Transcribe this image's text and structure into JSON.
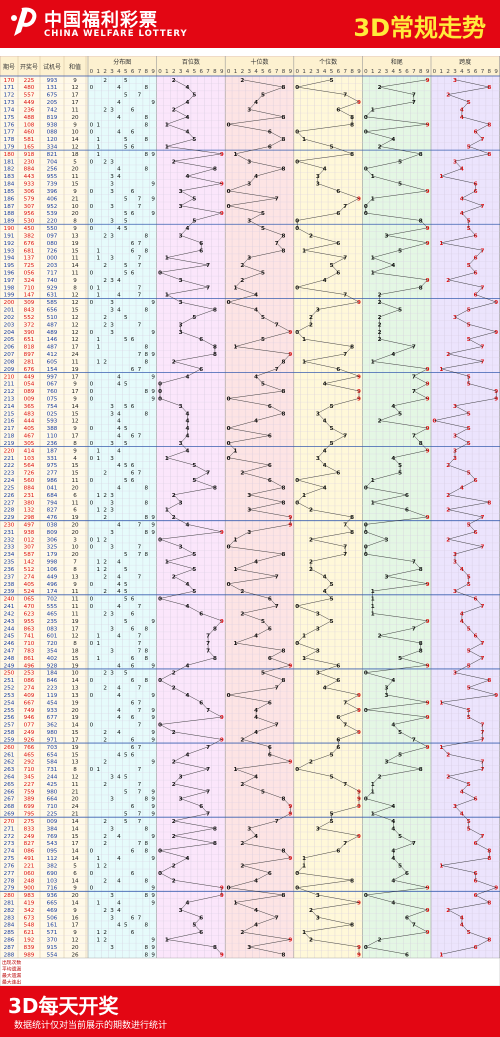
{
  "header": {
    "brand_cn": "中国福利彩票",
    "brand_en": "CHINA WELFARE LOTTERY",
    "title": "3D常规走势"
  },
  "footer": {
    "title": "3D每天开奖",
    "note": "数据统计仅对当前展示的期数进行统计"
  },
  "table": {
    "col_headers": [
      "期号",
      "开奖号",
      "试机号",
      "和值"
    ],
    "section_titles": [
      "分布图",
      "百位数",
      "十位数",
      "个位数",
      "和尾",
      "跨度"
    ],
    "digit_labels": [
      "0",
      "1",
      "2",
      "3",
      "4",
      "5",
      "6",
      "7",
      "8",
      "9"
    ],
    "stats_labels": [
      "出现次数",
      "平均遗漏",
      "最大遗漏",
      "最大连出"
    ]
  },
  "chart_data": {
    "type": "table",
    "title": "3D常规走势",
    "period_range": [
      170,
      289
    ],
    "rows": [
      {
        "p": "170",
        "draw": "225",
        "trial": "993",
        "sum": 9
      },
      {
        "p": "171",
        "draw": "480",
        "trial": "131",
        "sum": 12
      },
      {
        "p": "172",
        "draw": "557",
        "trial": "675",
        "sum": 17
      },
      {
        "p": "173",
        "draw": "449",
        "trial": "205",
        "sum": 17
      },
      {
        "p": "174",
        "draw": "236",
        "trial": "742",
        "sum": 11
      },
      {
        "p": "175",
        "draw": "488",
        "trial": "819",
        "sum": 20
      },
      {
        "p": "176",
        "draw": "108",
        "trial": "938",
        "sum": 9
      },
      {
        "p": "177",
        "draw": "460",
        "trial": "088",
        "sum": 10
      },
      {
        "p": "178",
        "draw": "581",
        "trial": "120",
        "sum": 14
      },
      {
        "p": "179",
        "draw": "165",
        "trial": "334",
        "sum": 12
      },
      {
        "p": "180",
        "draw": "918",
        "trial": "821",
        "sum": 18
      },
      {
        "p": "181",
        "draw": "230",
        "trial": "704",
        "sum": 5
      },
      {
        "p": "182",
        "draw": "884",
        "trial": "256",
        "sum": 20
      },
      {
        "p": "183",
        "draw": "443",
        "trial": "955",
        "sum": 11
      },
      {
        "p": "184",
        "draw": "933",
        "trial": "739",
        "sum": 15
      },
      {
        "p": "185",
        "draw": "306",
        "trial": "396",
        "sum": 9
      },
      {
        "p": "186",
        "draw": "579",
        "trial": "406",
        "sum": 21
      },
      {
        "p": "187",
        "draw": "307",
        "trial": "952",
        "sum": 10
      },
      {
        "p": "188",
        "draw": "956",
        "trial": "539",
        "sum": 20
      },
      {
        "p": "189",
        "draw": "530",
        "trial": "220",
        "sum": 8
      },
      {
        "p": "190",
        "draw": "450",
        "trial": "550",
        "sum": 9
      },
      {
        "p": "191",
        "draw": "382",
        "trial": "097",
        "sum": 13
      },
      {
        "p": "192",
        "draw": "676",
        "trial": "080",
        "sum": 19
      },
      {
        "p": "193",
        "draw": "681",
        "trial": "726",
        "sum": 15
      },
      {
        "p": "194",
        "draw": "137",
        "trial": "000",
        "sum": 11
      },
      {
        "p": "195",
        "draw": "725",
        "trial": "203",
        "sum": 14
      },
      {
        "p": "196",
        "draw": "056",
        "trial": "717",
        "sum": 11
      },
      {
        "p": "197",
        "draw": "324",
        "trial": "740",
        "sum": 9
      },
      {
        "p": "198",
        "draw": "710",
        "trial": "929",
        "sum": 8
      },
      {
        "p": "199",
        "draw": "147",
        "trial": "631",
        "sum": 12
      },
      {
        "p": "200",
        "draw": "309",
        "trial": "585",
        "sum": 12
      },
      {
        "p": "201",
        "draw": "843",
        "trial": "656",
        "sum": 15
      },
      {
        "p": "202",
        "draw": "552",
        "trial": "510",
        "sum": 12
      },
      {
        "p": "203",
        "draw": "372",
        "trial": "487",
        "sum": 12
      },
      {
        "p": "204",
        "draw": "390",
        "trial": "489",
        "sum": 12
      },
      {
        "p": "205",
        "draw": "651",
        "trial": "146",
        "sum": 12
      },
      {
        "p": "206",
        "draw": "818",
        "trial": "487",
        "sum": 17
      },
      {
        "p": "207",
        "draw": "897",
        "trial": "412",
        "sum": 24
      },
      {
        "p": "208",
        "draw": "281",
        "trial": "605",
        "sum": 11
      },
      {
        "p": "209",
        "draw": "676",
        "trial": "154",
        "sum": 19
      },
      {
        "p": "210",
        "draw": "449",
        "trial": "997",
        "sum": 17
      },
      {
        "p": "211",
        "draw": "054",
        "trial": "067",
        "sum": 9
      },
      {
        "p": "212",
        "draw": "089",
        "trial": "760",
        "sum": 17
      },
      {
        "p": "213",
        "draw": "009",
        "trial": "075",
        "sum": 9
      },
      {
        "p": "214",
        "draw": "365",
        "trial": "754",
        "sum": 14
      },
      {
        "p": "215",
        "draw": "483",
        "trial": "025",
        "sum": 15
      },
      {
        "p": "216",
        "draw": "444",
        "trial": "593",
        "sum": 12
      },
      {
        "p": "217",
        "draw": "405",
        "trial": "388",
        "sum": 9
      },
      {
        "p": "218",
        "draw": "467",
        "trial": "110",
        "sum": 17
      },
      {
        "p": "219",
        "draw": "305",
        "trial": "236",
        "sum": 8
      },
      {
        "p": "220",
        "draw": "414",
        "trial": "187",
        "sum": 9
      },
      {
        "p": "221",
        "draw": "103",
        "trial": "331",
        "sum": 4
      },
      {
        "p": "222",
        "draw": "564",
        "trial": "975",
        "sum": 15
      },
      {
        "p": "223",
        "draw": "726",
        "trial": "277",
        "sum": 15
      },
      {
        "p": "224",
        "draw": "560",
        "trial": "986",
        "sum": 11
      },
      {
        "p": "225",
        "draw": "884",
        "trial": "041",
        "sum": 20
      },
      {
        "p": "226",
        "draw": "231",
        "trial": "684",
        "sum": 6
      },
      {
        "p": "227",
        "draw": "380",
        "trial": "794",
        "sum": 11
      },
      {
        "p": "228",
        "draw": "132",
        "trial": "827",
        "sum": 6
      },
      {
        "p": "229",
        "draw": "298",
        "trial": "476",
        "sum": 19
      },
      {
        "p": "230",
        "draw": "497",
        "trial": "038",
        "sum": 20
      },
      {
        "p": "231",
        "draw": "938",
        "trial": "809",
        "sum": 20
      },
      {
        "p": "232",
        "draw": "012",
        "trial": "306",
        "sum": 3
      },
      {
        "p": "233",
        "draw": "307",
        "trial": "325",
        "sum": 10
      },
      {
        "p": "234",
        "draw": "587",
        "trial": "179",
        "sum": 20
      },
      {
        "p": "235",
        "draw": "142",
        "trial": "998",
        "sum": 7
      },
      {
        "p": "236",
        "draw": "512",
        "trial": "106",
        "sum": 8
      },
      {
        "p": "237",
        "draw": "274",
        "trial": "449",
        "sum": 13
      },
      {
        "p": "238",
        "draw": "405",
        "trial": "496",
        "sum": 9
      },
      {
        "p": "239",
        "draw": "524",
        "trial": "174",
        "sum": 11
      },
      {
        "p": "240",
        "draw": "065",
        "trial": "702",
        "sum": 11
      },
      {
        "p": "241",
        "draw": "470",
        "trial": "555",
        "sum": 11
      },
      {
        "p": "242",
        "draw": "623",
        "trial": "465",
        "sum": 11
      },
      {
        "p": "243",
        "draw": "955",
        "trial": "235",
        "sum": 19
      },
      {
        "p": "244",
        "draw": "863",
        "trial": "083",
        "sum": 17
      },
      {
        "p": "245",
        "draw": "741",
        "trial": "601",
        "sum": 12
      },
      {
        "p": "246",
        "draw": "710",
        "trial": "720",
        "sum": 8
      },
      {
        "p": "247",
        "draw": "783",
        "trial": "354",
        "sum": 18
      },
      {
        "p": "248",
        "draw": "861",
        "trial": "402",
        "sum": 15
      },
      {
        "p": "249",
        "draw": "496",
        "trial": "928",
        "sum": 19
      },
      {
        "p": "250",
        "draw": "253",
        "trial": "184",
        "sum": 10
      },
      {
        "p": "251",
        "draw": "086",
        "trial": "846",
        "sum": 14
      },
      {
        "p": "252",
        "draw": "274",
        "trial": "223",
        "sum": 13
      },
      {
        "p": "253",
        "draw": "409",
        "trial": "119",
        "sum": 13
      },
      {
        "p": "254",
        "draw": "667",
        "trial": "454",
        "sum": 19
      },
      {
        "p": "255",
        "draw": "749",
        "trial": "933",
        "sum": 20
      },
      {
        "p": "256",
        "draw": "946",
        "trial": "677",
        "sum": 19
      },
      {
        "p": "257",
        "draw": "077",
        "trial": "362",
        "sum": 14
      },
      {
        "p": "258",
        "draw": "249",
        "trial": "980",
        "sum": 15
      },
      {
        "p": "259",
        "draw": "926",
        "trial": "971",
        "sum": 17
      },
      {
        "p": "260",
        "draw": "766",
        "trial": "703",
        "sum": 19
      },
      {
        "p": "261",
        "draw": "465",
        "trial": "654",
        "sum": 15
      },
      {
        "p": "262",
        "draw": "292",
        "trial": "584",
        "sum": 13
      },
      {
        "p": "263",
        "draw": "710",
        "trial": "731",
        "sum": 8
      },
      {
        "p": "264",
        "draw": "345",
        "trial": "244",
        "sum": 12
      },
      {
        "p": "265",
        "draw": "227",
        "trial": "425",
        "sum": 11
      },
      {
        "p": "266",
        "draw": "759",
        "trial": "980",
        "sum": 21
      },
      {
        "p": "267",
        "draw": "389",
        "trial": "664",
        "sum": 20
      },
      {
        "p": "268",
        "draw": "699",
        "trial": "710",
        "sum": 24
      },
      {
        "p": "269",
        "draw": "795",
        "trial": "225",
        "sum": 21
      },
      {
        "p": "270",
        "draw": "275",
        "trial": "009",
        "sum": 14
      },
      {
        "p": "271",
        "draw": "833",
        "trial": "384",
        "sum": 14
      },
      {
        "p": "272",
        "draw": "249",
        "trial": "769",
        "sum": 15
      },
      {
        "p": "273",
        "draw": "827",
        "trial": "543",
        "sum": 17
      },
      {
        "p": "274",
        "draw": "086",
        "trial": "095",
        "sum": 14
      },
      {
        "p": "275",
        "draw": "491",
        "trial": "112",
        "sum": 14
      },
      {
        "p": "276",
        "draw": "221",
        "trial": "382",
        "sum": 5
      },
      {
        "p": "277",
        "draw": "060",
        "trial": "690",
        "sum": 6
      },
      {
        "p": "278",
        "draw": "248",
        "trial": "103",
        "sum": 14
      },
      {
        "p": "279",
        "draw": "900",
        "trial": "716",
        "sum": 9
      },
      {
        "p": "280",
        "draw": "983",
        "trial": "936",
        "sum": 20
      },
      {
        "p": "281",
        "draw": "419",
        "trial": "665",
        "sum": 14
      },
      {
        "p": "282",
        "draw": "342",
        "trial": "469",
        "sum": 9
      },
      {
        "p": "283",
        "draw": "673",
        "trial": "506",
        "sum": 16
      },
      {
        "p": "284",
        "draw": "548",
        "trial": "161",
        "sum": 17
      },
      {
        "p": "285",
        "draw": "621",
        "trial": "571",
        "sum": 9
      },
      {
        "p": "286",
        "draw": "192",
        "trial": "370",
        "sum": 12
      },
      {
        "p": "287",
        "draw": "839",
        "trial": "915",
        "sum": 20
      },
      {
        "p": "288",
        "draw": "989",
        "trial": "554",
        "sum": 26
      }
    ],
    "section_colors": [
      "#e6fbfb",
      "#fbe6fb",
      "#fde4e4",
      "#fff8d9",
      "#e4f7e4",
      "#ece4fd"
    ]
  }
}
